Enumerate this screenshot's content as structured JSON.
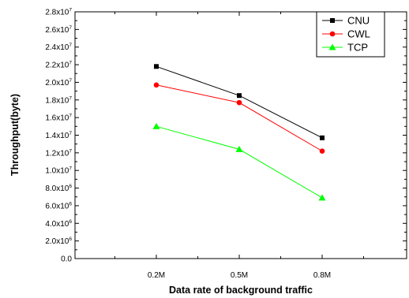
{
  "chart_data": {
    "type": "line",
    "xlabel": "Data rate of background traffic",
    "ylabel": "Throughput(byte)",
    "categories": [
      "0.2M",
      "0.5M",
      "0.8M"
    ],
    "ylim": [
      0,
      28000000
    ],
    "yticks": [
      {
        "value": 0,
        "mant": "0.0",
        "exp": ""
      },
      {
        "value": 2000000,
        "mant": "2.0x10",
        "exp": "6"
      },
      {
        "value": 4000000,
        "mant": "4.0x10",
        "exp": "6"
      },
      {
        "value": 6000000,
        "mant": "6.0x10",
        "exp": "6"
      },
      {
        "value": 8000000,
        "mant": "8.0x10",
        "exp": "6"
      },
      {
        "value": 10000000,
        "mant": "1.0x10",
        "exp": "7"
      },
      {
        "value": 12000000,
        "mant": "1.2x10",
        "exp": "7"
      },
      {
        "value": 14000000,
        "mant": "1.4x10",
        "exp": "7"
      },
      {
        "value": 16000000,
        "mant": "1.6x10",
        "exp": "7"
      },
      {
        "value": 18000000,
        "mant": "1.8x10",
        "exp": "7"
      },
      {
        "value": 20000000,
        "mant": "2.0x10",
        "exp": "7"
      },
      {
        "value": 22000000,
        "mant": "2.2x10",
        "exp": "7"
      },
      {
        "value": 24000000,
        "mant": "2.4x10",
        "exp": "7"
      },
      {
        "value": 26000000,
        "mant": "2.6x10",
        "exp": "7"
      },
      {
        "value": 28000000,
        "mant": "2.8x10",
        "exp": "7"
      }
    ],
    "series": [
      {
        "name": "CNU",
        "color": "#000000",
        "marker": "square",
        "values": [
          21800000,
          18500000,
          13700000
        ]
      },
      {
        "name": "CWL",
        "color": "#ff0000",
        "marker": "circle",
        "values": [
          19700000,
          17700000,
          12200000
        ]
      },
      {
        "name": "TCP",
        "color": "#00ff00",
        "marker": "triangle",
        "values": [
          15000000,
          12400000,
          6900000
        ]
      }
    ],
    "grid": false,
    "legend_position": "top-right"
  }
}
